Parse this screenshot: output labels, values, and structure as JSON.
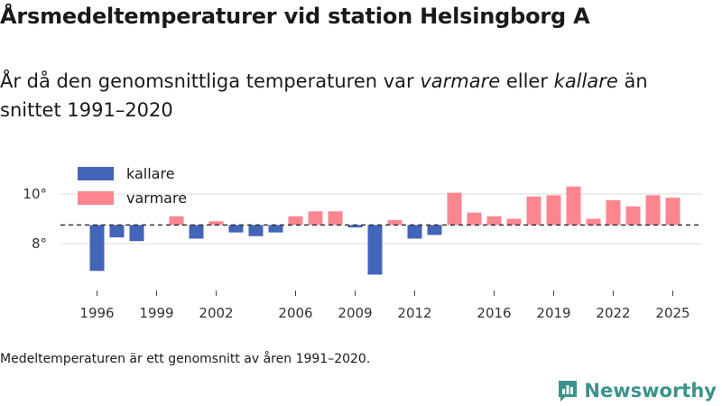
{
  "title": "Årsmedeltemperaturer vid station Helsingborg A",
  "subtitle": {
    "prefix": "År då den genomsnittliga temperaturen var ",
    "warm_word": "varmare",
    "middle": " eller ",
    "cold_word": "kallare",
    "suffix": " än snittet 1991–2020"
  },
  "footnote": "Medeltemperaturen är ett genomsnitt av åren 1991–2020.",
  "brand": {
    "name": "Newsworthy",
    "logo_icon": "bar-chart-badge-icon"
  },
  "colors": {
    "colder": "#4265b9",
    "warmer": "#fc8690",
    "grid": "#dddddd",
    "baseline": "#333333",
    "brand": "#3a948c"
  },
  "chart_data": {
    "type": "bar",
    "baseline": 8.75,
    "legend": [
      {
        "key": "colder",
        "label": "kallare"
      },
      {
        "key": "warmer",
        "label": "varmare"
      }
    ],
    "y_ticks": [
      {
        "value": 10,
        "label": "10°"
      },
      {
        "value": 8,
        "label": "8°"
      }
    ],
    "ylim": [
      6.5,
      10.4
    ],
    "x_ticks": [
      1996,
      1999,
      2002,
      2006,
      2009,
      2012,
      2016,
      2019,
      2022,
      2025
    ],
    "x_range": [
      1992,
      2027
    ],
    "years": [
      1996,
      1997,
      1998,
      1999,
      2000,
      2001,
      2002,
      2003,
      2004,
      2005,
      2006,
      2007,
      2008,
      2009,
      2010,
      2011,
      2012,
      2013,
      2014,
      2015,
      2016,
      2017,
      2018,
      2019,
      2020,
      2021,
      2022,
      2023,
      2024,
      2025
    ],
    "values": [
      6.9,
      8.25,
      8.1,
      8.75,
      9.1,
      8.2,
      8.9,
      8.45,
      8.3,
      8.45,
      9.1,
      9.3,
      9.3,
      8.65,
      6.75,
      8.95,
      8.2,
      8.35,
      10.05,
      9.25,
      9.1,
      9.0,
      9.9,
      9.95,
      10.3,
      9.0,
      9.75,
      9.5,
      9.95,
      9.85
    ]
  }
}
